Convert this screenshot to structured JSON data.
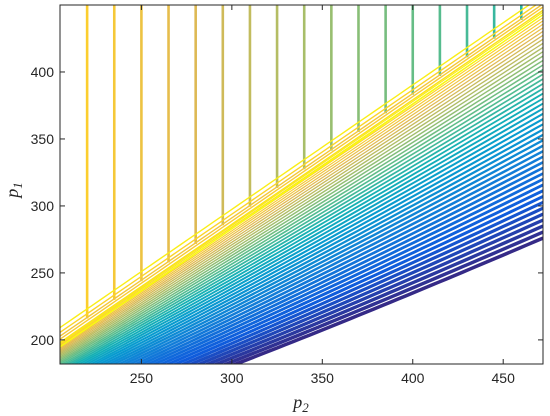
{
  "chart_data": {
    "type": "contour",
    "title": "",
    "xlabel": "p",
    "xlabel_sub": "2",
    "ylabel": "p",
    "ylabel_sub": "1",
    "xlim": [
      205,
      472
    ],
    "ylim": [
      182,
      450
    ],
    "xticks": [
      250,
      300,
      350,
      400,
      450
    ],
    "yticks": [
      200,
      250,
      300,
      350,
      400
    ],
    "grid": false,
    "colormap": "parula",
    "colors": {
      "low": "#352a87",
      "blue": "#0f5cdd",
      "cyan": "#1ab2c3",
      "green": "#a5be6a",
      "high": "#f9fb0e",
      "axis": "#262626"
    },
    "boundary_line": {
      "x": [
        205,
        472
      ],
      "y": [
        202,
        450
      ]
    },
    "upper_region_vertical_contours_x": [
      220,
      235,
      250,
      265,
      280,
      295,
      310,
      325,
      340,
      355,
      370,
      385,
      400,
      415,
      430,
      445,
      460
    ],
    "lower_region_contour_levels": 48
  }
}
